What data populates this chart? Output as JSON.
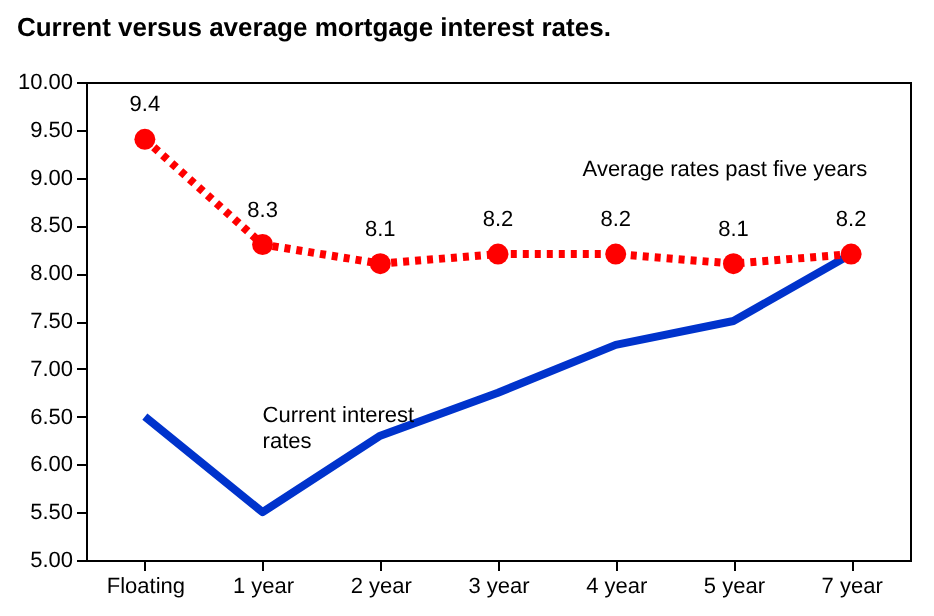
{
  "chart_data": {
    "type": "line",
    "title": "Current versus  average mortgage interest rates.",
    "categories": [
      "Floating",
      "1 year",
      "2 year",
      "3 year",
      "4 year",
      "5 year",
      "7 year"
    ],
    "ylim": [
      5,
      10
    ],
    "yticks": [
      {
        "value": 5,
        "label": "5.00"
      },
      {
        "value": 5.5,
        "label": "5.50"
      },
      {
        "value": 6,
        "label": "6.00"
      },
      {
        "value": 6.5,
        "label": "6.50"
      },
      {
        "value": 7,
        "label": "7.00"
      },
      {
        "value": 7.5,
        "label": "7.50"
      },
      {
        "value": 8,
        "label": "8.00"
      },
      {
        "value": 8.5,
        "label": "8.50"
      },
      {
        "value": 9,
        "label": "9.00"
      },
      {
        "value": 9.5,
        "label": "9.50"
      },
      {
        "value": 10,
        "label": "10.00"
      }
    ],
    "grid": false,
    "series": [
      {
        "name": "Current interest rates",
        "color": "#0033cc",
        "values": [
          6.5,
          5.5,
          6.3,
          6.75,
          7.25,
          7.5,
          8.2
        ],
        "marker": "none",
        "line_style": "solid"
      },
      {
        "name": "Average rates past five years",
        "color": "#ff0000",
        "values": [
          9.4,
          8.3,
          8.1,
          8.2,
          8.2,
          8.1,
          8.2
        ],
        "marker": "circle",
        "line_style": "dotted",
        "value_labels": [
          "9.4",
          "8.3",
          "8.1",
          "8.2",
          "8.2",
          "8.1",
          "8.2"
        ]
      }
    ]
  }
}
